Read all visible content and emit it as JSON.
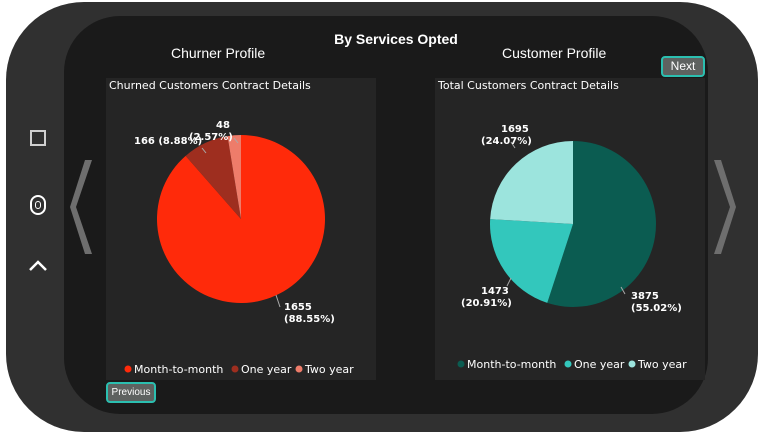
{
  "page": {
    "title": "By Services Opted",
    "left_subtitle": "Churner Profile",
    "right_subtitle": "Customer Profile"
  },
  "buttons": {
    "next_label": "Next",
    "previous_label": "Previous"
  },
  "icons": [
    "square-icon",
    "home-icon",
    "chevron-up-icon",
    "chevron-left-icon",
    "chevron-right-icon"
  ],
  "chart_data": [
    {
      "type": "pie",
      "title": "Churned Customers Contract Details",
      "categories": [
        "Month-to-month",
        "One year",
        "Two year"
      ],
      "values": [
        1655,
        166,
        48
      ],
      "data_labels": [
        [
          "1655",
          "(88.55%)"
        ],
        [
          "166 (8.88%)"
        ],
        [
          "48",
          "(2.57%)"
        ]
      ],
      "colors": [
        "#ff2a0a",
        "#9e2e1f",
        "#ee7c6a"
      ],
      "legend_position": "bottom"
    },
    {
      "type": "pie",
      "title": "Total Customers Contract Details",
      "categories": [
        "Month-to-month",
        "One year",
        "Two year"
      ],
      "values": [
        3875,
        1473,
        1695
      ],
      "data_labels": [
        [
          "3875",
          "(55.02%)"
        ],
        [
          "1473",
          "(20.91%)"
        ],
        [
          "1695",
          "(24.07%)"
        ]
      ],
      "colors": [
        "#0b5c51",
        "#33c7bc",
        "#9ce4dd"
      ],
      "legend_position": "bottom"
    }
  ]
}
